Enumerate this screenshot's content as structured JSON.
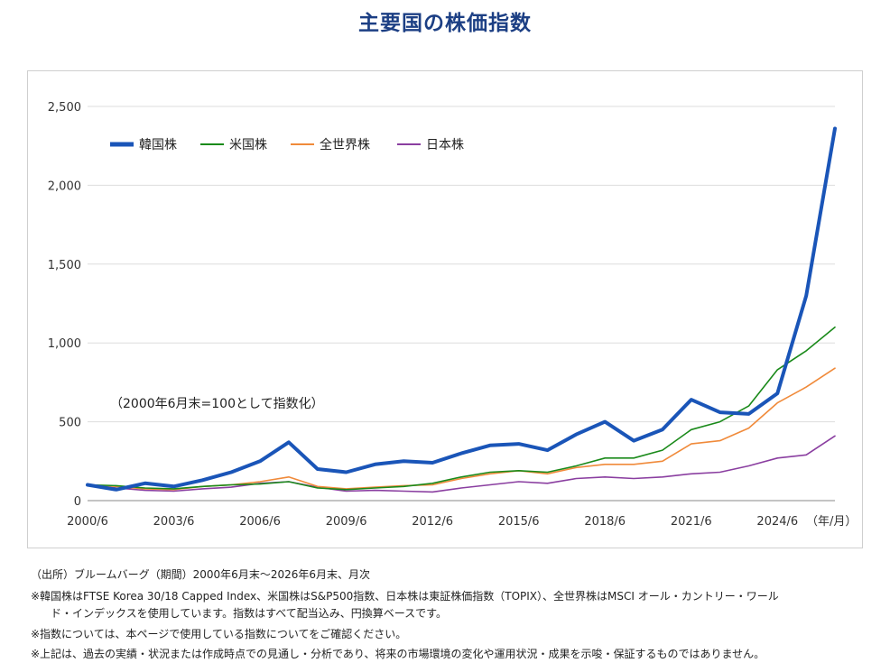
{
  "page": {
    "title": "主要国の株価指数"
  },
  "chart_data": {
    "type": "line",
    "x_ticks": [
      "2000/6",
      "2003/6",
      "2006/6",
      "2009/6",
      "2012/6",
      "2015/6",
      "2018/6",
      "2021/6",
      "2024/6"
    ],
    "x_unit_label": "（年/月）",
    "y_ticks": [
      "0",
      "500",
      "1,000",
      "1,500",
      "2,000",
      "2,500"
    ],
    "ylim": [
      0,
      2500
    ],
    "x_range": [
      "2000/6",
      "2026/6"
    ],
    "grid": "horizontal",
    "legend_position": "top-left",
    "annotation": "（2000年6月末=100として指数化）",
    "series": [
      {
        "name": "韓国株",
        "color": "#1a55b8",
        "x": [
          "2000/6",
          "2001/6",
          "2002/6",
          "2003/6",
          "2004/6",
          "2005/6",
          "2006/6",
          "2007/6",
          "2008/6",
          "2009/6",
          "2010/6",
          "2011/6",
          "2012/6",
          "2013/6",
          "2014/6",
          "2015/6",
          "2016/6",
          "2017/6",
          "2018/6",
          "2019/6",
          "2020/6",
          "2021/6",
          "2022/6",
          "2023/6",
          "2024/6",
          "2025/6",
          "2026/6"
        ],
        "values": [
          100,
          70,
          110,
          90,
          130,
          180,
          250,
          370,
          200,
          180,
          230,
          250,
          240,
          300,
          350,
          360,
          320,
          420,
          500,
          380,
          450,
          640,
          560,
          550,
          680,
          1300,
          2360
        ]
      },
      {
        "name": "米国株",
        "color": "#1a8a1a",
        "x": [
          "2000/6",
          "2001/6",
          "2002/6",
          "2003/6",
          "2004/6",
          "2005/6",
          "2006/6",
          "2007/6",
          "2008/6",
          "2009/6",
          "2010/6",
          "2011/6",
          "2012/6",
          "2013/6",
          "2014/6",
          "2015/6",
          "2016/6",
          "2017/6",
          "2018/6",
          "2019/6",
          "2020/6",
          "2021/6",
          "2022/6",
          "2023/6",
          "2024/6",
          "2025/6",
          "2026/6"
        ],
        "values": [
          100,
          95,
          80,
          75,
          90,
          100,
          105,
          120,
          80,
          70,
          80,
          90,
          110,
          150,
          180,
          190,
          180,
          220,
          270,
          270,
          320,
          450,
          500,
          600,
          830,
          950,
          1100
        ]
      },
      {
        "name": "全世界株",
        "color": "#f08a3a",
        "x": [
          "2000/6",
          "2001/6",
          "2002/6",
          "2003/6",
          "2004/6",
          "2005/6",
          "2006/6",
          "2007/6",
          "2008/6",
          "2009/6",
          "2010/6",
          "2011/6",
          "2012/6",
          "2013/6",
          "2014/6",
          "2015/6",
          "2016/6",
          "2017/6",
          "2018/6",
          "2019/6",
          "2020/6",
          "2021/6",
          "2022/6",
          "2023/6",
          "2024/6",
          "2025/6",
          "2026/6"
        ],
        "values": [
          100,
          90,
          75,
          70,
          90,
          100,
          120,
          150,
          90,
          75,
          85,
          95,
          100,
          140,
          170,
          190,
          170,
          210,
          230,
          230,
          250,
          360,
          380,
          460,
          620,
          720,
          840
        ]
      },
      {
        "name": "日本株",
        "color": "#8a3ea0",
        "x": [
          "2000/6",
          "2001/6",
          "2002/6",
          "2003/6",
          "2004/6",
          "2005/6",
          "2006/6",
          "2007/6",
          "2008/6",
          "2009/6",
          "2010/6",
          "2011/6",
          "2012/6",
          "2013/6",
          "2014/6",
          "2015/6",
          "2016/6",
          "2017/6",
          "2018/6",
          "2019/6",
          "2020/6",
          "2021/6",
          "2022/6",
          "2023/6",
          "2024/6",
          "2025/6",
          "2026/6"
        ],
        "values": [
          100,
          80,
          65,
          60,
          75,
          85,
          110,
          120,
          85,
          60,
          65,
          60,
          55,
          80,
          100,
          120,
          110,
          140,
          150,
          140,
          150,
          170,
          180,
          220,
          270,
          290,
          410
        ]
      }
    ]
  },
  "notes": [
    "（出所）ブルームバーグ（期間）2000年6月末～2026年6月末、月次",
    "※韓国株はFTSE Korea 30/18 Capped Index、米国株はS&P500指数、日本株は東証株価指数（TOPIX）、全世界株はMSCI オール・カントリー・ワール",
    "ド・インデックスを使用しています。指数はすべて配当込み、円換算ベースです。",
    "※指数については、本ページで使用している指数についてをご確認ください。",
    "※上記は、過去の実績・状況または作成時点での見通し・分析であり、将来の市場環境の変化や運用状況・成果を示唆・保証するものではありません。"
  ]
}
